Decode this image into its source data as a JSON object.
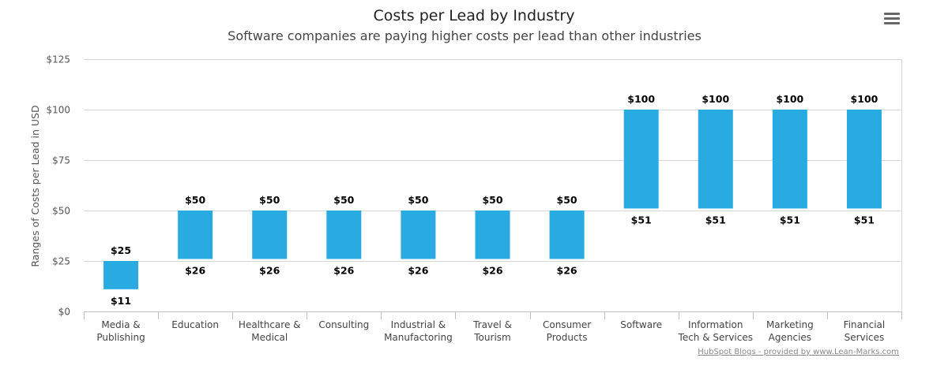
{
  "chart_data": {
    "type": "bar",
    "subtype": "floating-range",
    "title": "Costs per Lead by Industry",
    "subtitle": "Software companies are paying higher costs per lead than other industries",
    "ylabel": "Ranges of Costs per Lead in USD",
    "xlabel": "",
    "ylim": [
      0,
      125
    ],
    "y_ticks": [
      0,
      25,
      50,
      75,
      100,
      125
    ],
    "y_tick_labels": [
      "$0",
      "$25",
      "$50",
      "$75",
      "$100",
      "$125"
    ],
    "categories": [
      [
        "Media &",
        "Publishing"
      ],
      [
        "Education"
      ],
      [
        "Healthcare &",
        "Medical"
      ],
      [
        "Consulting"
      ],
      [
        "Industrial &",
        "Manufactoring"
      ],
      [
        "Travel &",
        "Tourism"
      ],
      [
        "Consumer",
        "Products"
      ],
      [
        "Software"
      ],
      [
        "Information",
        "Tech & Services"
      ],
      [
        "Marketing",
        "Agencies"
      ],
      [
        "Financial",
        "Services"
      ]
    ],
    "low": [
      11,
      26,
      26,
      26,
      26,
      26,
      26,
      51,
      51,
      51,
      51
    ],
    "high": [
      25,
      50,
      50,
      50,
      50,
      50,
      50,
      100,
      100,
      100,
      100
    ],
    "low_labels": [
      "$11",
      "$26",
      "$26",
      "$26",
      "$26",
      "$26",
      "$26",
      "$51",
      "$51",
      "$51",
      "$51"
    ],
    "high_labels": [
      "$25",
      "$50",
      "$50",
      "$50",
      "$50",
      "$50",
      "$50",
      "$100",
      "$100",
      "$100",
      "$100"
    ],
    "grid": true,
    "legend": "none",
    "bar_color": "#29abe2",
    "credit": "HubSpot Blogs - provided by www.Lean-Marks.com"
  },
  "menu_icon": "hamburger-menu-icon"
}
